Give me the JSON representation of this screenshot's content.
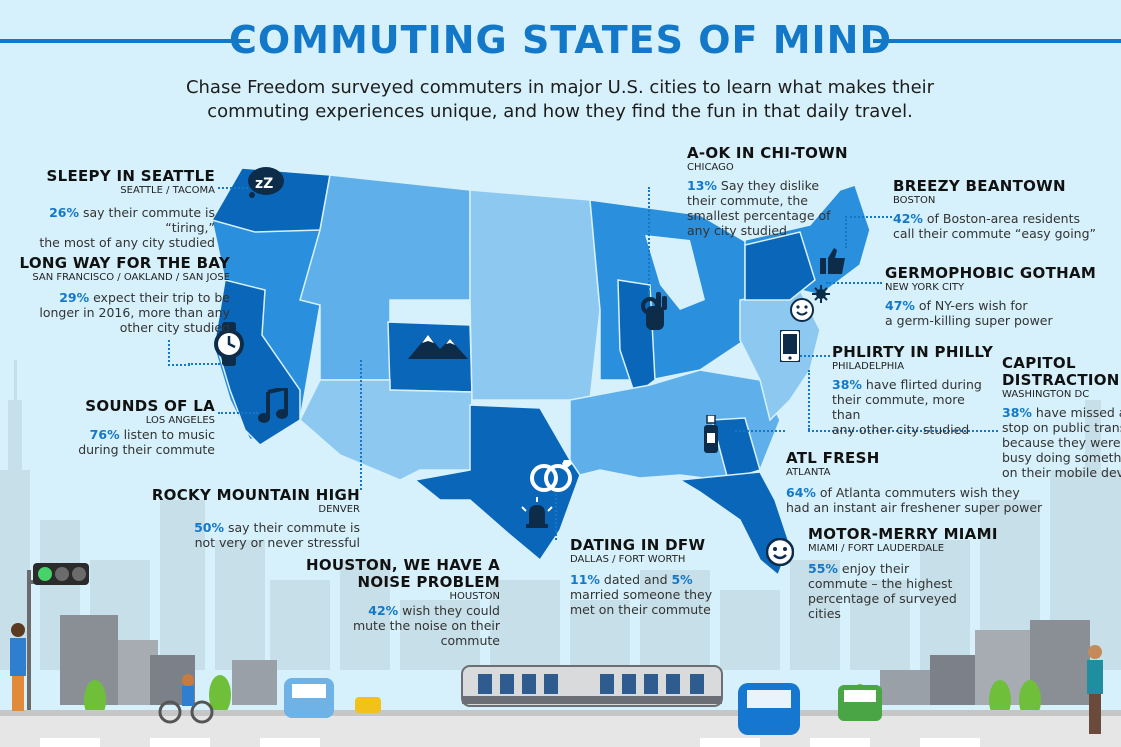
{
  "header": {
    "title": "COMMUTING STATES OF MIND",
    "subtitle_line1": "Chase Freedom surveyed commuters in major U.S. cities to learn what makes their",
    "subtitle_line2": "commuting experiences unique, and how they find the fun in that daily travel."
  },
  "colors": {
    "accent": "#1478c8",
    "sky": "#d6f1fb",
    "map_dark": "#0a66b8",
    "map_mid": "#2a8fdc",
    "map_light": "#8cc8f0"
  },
  "callouts": {
    "seattle": {
      "heading": "SLEEPY IN SEATTLE",
      "city": "SEATTLE / TACOMA",
      "stat": "26%",
      "text1": " say their commute is “tiring,”",
      "text2": "the most of any city studied"
    },
    "bay": {
      "heading": "LONG WAY FOR THE BAY",
      "city": "SAN FRANCISCO / OAKLAND / SAN JOSE",
      "stat": "29%",
      "text1": " expect their trip to be",
      "text2": "longer in 2016, more than any",
      "text3": "other city studied"
    },
    "la": {
      "heading": "SOUNDS OF LA",
      "city": "LOS ANGELES",
      "stat": "76%",
      "text1": " listen to music",
      "text2": "during their commute"
    },
    "denver": {
      "heading": "ROCKY MOUNTAIN HIGH",
      "city": "DENVER",
      "stat": "50%",
      "text1": " say their commute is",
      "text2": "not very or never stressful"
    },
    "houston": {
      "heading1": "HOUSTON, WE HAVE A",
      "heading2": "NOISE PROBLEM",
      "city": "HOUSTON",
      "stat": "42%",
      "text1": " wish they could",
      "text2": "mute the noise on their",
      "text3": "commute"
    },
    "dfw": {
      "heading": "DATING IN DFW",
      "city": "DALLAS / FORT WORTH",
      "stat": "11%",
      "mid": " dated and ",
      "stat2": "5%",
      "text2": "married someone they",
      "text3": "met on their commute"
    },
    "chicago": {
      "heading": "A-OK IN CHI-TOWN",
      "city": "CHICAGO",
      "stat": "13%",
      "text1": " Say they dislike",
      "text2": "their commute, the",
      "text3": "smallest percentage of",
      "text4": "any city studied"
    },
    "boston": {
      "heading": "BREEZY BEANTOWN",
      "city": "BOSTON",
      "stat": "42%",
      "text1": " of Boston-area residents",
      "text2": "call their commute “easy going”"
    },
    "nyc": {
      "heading": "GERMOPHOBIC GOTHAM",
      "city": "NEW YORK CITY",
      "stat": "47%",
      "text1": " of NY-ers wish for",
      "text2": "a germ-killing super power"
    },
    "philly": {
      "heading": "PHLIRTY IN PHILLY",
      "city": "PHILADELPHIA",
      "stat": "38%",
      "text1": " have flirted during",
      "text2": "their commute, more than",
      "text3": "any other city studied"
    },
    "dc": {
      "heading1": "CAPITOL",
      "heading2": "DISTRACTION",
      "city": "WASHINGTON DC",
      "stat": "38%",
      "text1": " have missed a",
      "text2": "stop on public trans",
      "text3": "because they were t",
      "text4": "busy doing somethin",
      "text5": "on their mobile devi"
    },
    "atlanta": {
      "heading": "ATL FRESH",
      "city": "ATLANTA",
      "stat": "64%",
      "text1": " of Atlanta commuters wish they",
      "text2": "had an instant air freshener super power"
    },
    "miami": {
      "heading": "MOTOR-MERRY MIAMI",
      "city": "MIAMI / FORT LAUDERDALE",
      "stat": "55%",
      "text1": " enjoy their",
      "text2": "commute – the highest",
      "text3": "percentage of surveyed",
      "text4": "cities"
    }
  },
  "icons": [
    "sleep-zzz-icon",
    "watch-icon",
    "music-note-icon",
    "mountains-icon",
    "ok-hand-icon",
    "thumbs-up-icon",
    "germ-icon",
    "smiley-icon",
    "smartphone-icon",
    "air-freshener-icon",
    "rings-icon",
    "bell-icon",
    "happy-face-icon"
  ]
}
